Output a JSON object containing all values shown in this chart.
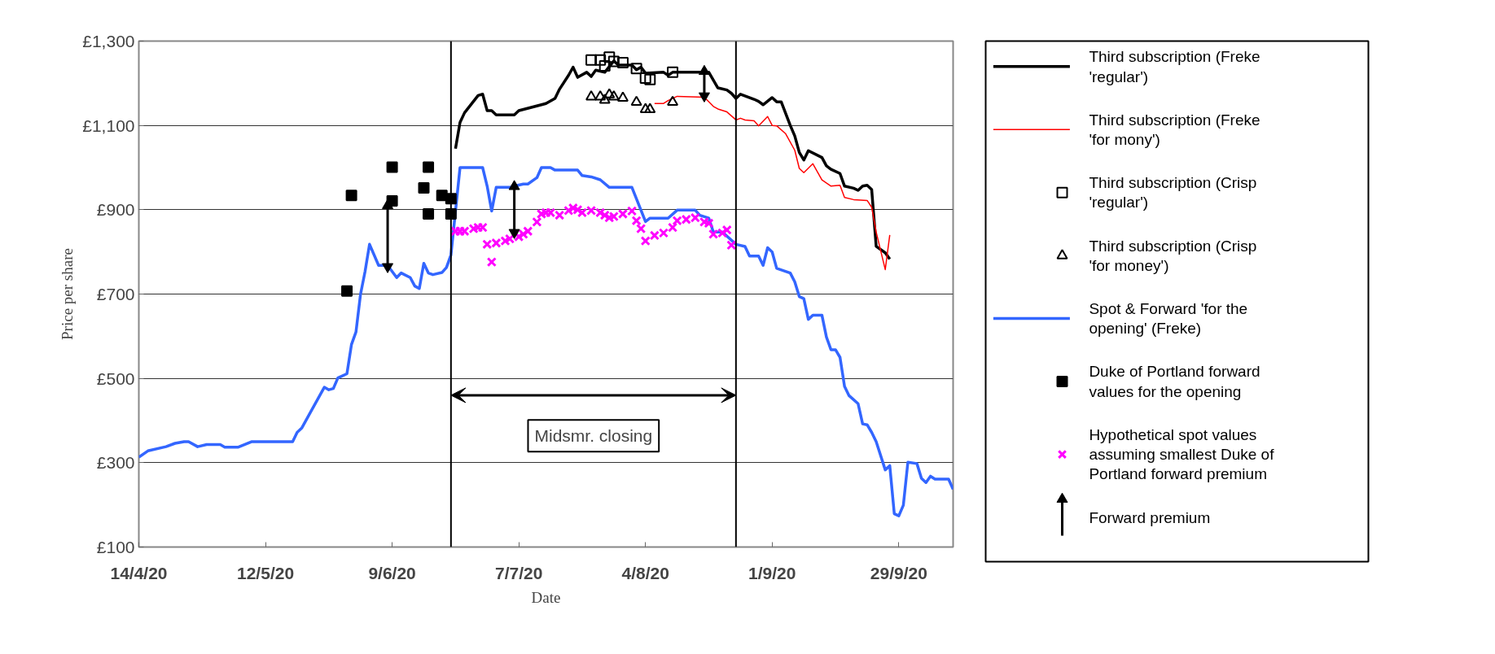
{
  "chart_data": {
    "type": "line",
    "xlabel": "Date",
    "ylabel": "Price per share",
    "xlim": [
      "1720-04-14",
      "1720-10-11"
    ],
    "ylim": [
      100,
      1300
    ],
    "xticks": [
      {
        "value": "1720-04-14",
        "label": "14/4/20"
      },
      {
        "value": "1720-05-12",
        "label": "12/5/20"
      },
      {
        "value": "1720-06-09",
        "label": "9/6/20"
      },
      {
        "value": "1720-07-07",
        "label": "7/7/20"
      },
      {
        "value": "1720-08-04",
        "label": "4/8/20"
      },
      {
        "value": "1720-09-01",
        "label": "1/9/20"
      },
      {
        "value": "1720-09-29",
        "label": "29/9/20"
      }
    ],
    "yticks": [
      {
        "value": 100,
        "label": "£100"
      },
      {
        "value": 300,
        "label": "£300"
      },
      {
        "value": 500,
        "label": "£500"
      },
      {
        "value": 700,
        "label": "£700"
      },
      {
        "value": 900,
        "label": "£900"
      },
      {
        "value": 1100,
        "label": "£1,100"
      },
      {
        "value": 1300,
        "label": "£1,300"
      }
    ],
    "grid": "y",
    "legend": "right",
    "ref_lines": [
      {
        "axis": "x",
        "value": "1720-06-22",
        "color": "#000000"
      },
      {
        "axis": "x",
        "value": "1720-08-24",
        "color": "#000000"
      }
    ],
    "annotations": [
      "Midsmr. closing"
    ],
    "series": [
      {
        "name": "Third subscription (Freke 'regular')",
        "color": "#000000",
        "x": [
          "1720-06-23",
          "1720-06-24",
          "1720-06-25",
          "1720-06-28",
          "1720-06-29",
          "1720-06-30",
          "1720-07-01",
          "1720-07-02",
          "1720-07-06",
          "1720-07-07",
          "1720-07-12",
          "1720-07-13",
          "1720-07-15",
          "1720-07-16",
          "1720-07-18",
          "1720-07-19",
          "1720-07-20",
          "1720-07-22",
          "1720-07-23",
          "1720-07-24",
          "1720-07-26",
          "1720-07-28",
          "1720-07-29",
          "1720-08-01",
          "1720-08-02",
          "1720-08-03",
          "1720-08-04",
          "1720-08-08",
          "1720-08-09",
          "1720-08-10",
          "1720-08-18",
          "1720-08-20",
          "1720-08-22",
          "1720-08-23",
          "1720-08-24",
          "1720-08-25",
          "1720-08-28",
          "1720-08-29",
          "1720-08-30",
          "1720-09-01",
          "1720-09-02",
          "1720-09-03",
          "1720-09-05",
          "1720-09-06",
          "1720-09-07",
          "1720-09-08",
          "1720-09-09",
          "1720-09-12",
          "1720-09-13",
          "1720-09-14",
          "1720-09-16",
          "1720-09-17",
          "1720-09-19",
          "1720-09-20",
          "1720-09-21",
          "1720-09-22",
          "1720-09-23",
          "1720-09-24",
          "1720-09-26",
          "1720-09-27"
        ],
        "values": [
          1045,
          1107,
          1130,
          1171,
          1174,
          1135,
          1135,
          1125,
          1125,
          1135,
          1149,
          1152,
          1164,
          1186,
          1219,
          1238,
          1214,
          1226,
          1216,
          1231,
          1226,
          1253,
          1243,
          1243,
          1232,
          1238,
          1224,
          1226,
          1219,
          1226,
          1226,
          1189,
          1184,
          1176,
          1164,
          1174,
          1162,
          1157,
          1149,
          1166,
          1156,
          1156,
          1100,
          1075,
          1036,
          1018,
          1040,
          1024,
          1004,
          996,
          986,
          956,
          951,
          946,
          956,
          958,
          948,
          813,
          798,
          783
        ]
      },
      {
        "name": "Third subscription (Freke 'for mony')",
        "color": "#ff0000",
        "x": [
          "1720-08-06",
          "1720-08-08",
          "1720-08-09",
          "1720-08-11",
          "1720-08-17",
          "1720-08-19",
          "1720-08-20",
          "1720-08-22",
          "1720-08-24",
          "1720-08-25",
          "1720-08-26",
          "1720-08-28",
          "1720-08-29",
          "1720-08-31",
          "1720-09-01",
          "1720-09-02",
          "1720-09-04",
          "1720-09-06",
          "1720-09-07",
          "1720-09-08",
          "1720-09-10",
          "1720-09-12",
          "1720-09-14",
          "1720-09-16",
          "1720-09-17",
          "1720-09-19",
          "1720-09-22",
          "1720-09-23",
          "1720-09-24",
          "1720-09-26",
          "1720-09-27"
        ],
        "values": [
          1152,
          1152,
          1159,
          1169,
          1167,
          1145,
          1139,
          1132,
          1113,
          1117,
          1113,
          1111,
          1099,
          1121,
          1100,
          1099,
          1080,
          1041,
          998,
          988,
          1009,
          971,
          956,
          958,
          929,
          924,
          922,
          906,
          847,
          758,
          840
        ]
      },
      {
        "name": "Third subscription (Crisp 'regular')",
        "type": "scatter",
        "marker": "square",
        "color": "#000000",
        "x": [
          "1720-07-23",
          "1720-07-25",
          "1720-07-26",
          "1720-07-27",
          "1720-07-28",
          "1720-07-30",
          "1720-08-02",
          "1720-08-04",
          "1720-08-05",
          "1720-08-10"
        ],
        "values": [
          1255,
          1255,
          1241,
          1262,
          1252,
          1249,
          1235,
          1212,
          1209,
          1226
        ]
      },
      {
        "name": "Third subscription (Crisp 'for money')",
        "type": "scatter",
        "marker": "triangle",
        "color": "#000000",
        "x": [
          "1720-07-23",
          "1720-07-25",
          "1720-07-26",
          "1720-07-27",
          "1720-07-28",
          "1720-07-30",
          "1720-08-02",
          "1720-08-04",
          "1720-08-05",
          "1720-08-10"
        ],
        "values": [
          1168,
          1168,
          1160,
          1173,
          1168,
          1165,
          1155,
          1138,
          1138,
          1155
        ]
      },
      {
        "name": "Spot & Forward 'for the opening' (Freke)",
        "color": "#3366ff",
        "x": [
          "1720-04-14",
          "1720-04-16",
          "1720-04-20",
          "1720-04-22",
          "1720-04-24",
          "1720-04-25",
          "1720-04-27",
          "1720-04-29",
          "1720-05-02",
          "1720-05-03",
          "1720-05-06",
          "1720-05-09",
          "1720-05-18",
          "1720-05-19",
          "1720-05-20",
          "1720-05-25",
          "1720-05-26",
          "1720-05-27",
          "1720-05-28",
          "1720-05-30",
          "1720-05-31",
          "1720-06-01",
          "1720-06-02",
          "1720-06-03",
          "1720-06-04",
          "1720-06-06",
          "1720-06-08",
          "1720-06-10",
          "1720-06-11",
          "1720-06-13",
          "1720-06-14",
          "1720-06-15",
          "1720-06-16",
          "1720-06-17",
          "1720-06-18",
          "1720-06-20",
          "1720-06-21",
          "1720-06-22",
          "1720-06-24",
          "1720-06-29",
          "1720-06-30",
          "1720-07-01",
          "1720-07-02",
          "1720-07-05",
          "1720-07-06",
          "1720-07-08",
          "1720-07-09",
          "1720-07-11",
          "1720-07-12",
          "1720-07-14",
          "1720-07-15",
          "1720-07-20",
          "1720-07-21",
          "1720-07-23",
          "1720-07-25",
          "1720-07-27",
          "1720-08-01",
          "1720-08-04",
          "1720-08-05",
          "1720-08-09",
          "1720-08-11",
          "1720-08-15",
          "1720-08-16",
          "1720-08-18",
          "1720-08-19",
          "1720-08-21",
          "1720-08-24",
          "1720-08-26",
          "1720-08-27",
          "1720-08-29",
          "1720-08-30",
          "1720-08-31",
          "1720-09-01",
          "1720-09-02",
          "1720-09-05",
          "1720-09-06",
          "1720-09-07",
          "1720-09-08",
          "1720-09-09",
          "1720-09-10",
          "1720-09-12",
          "1720-09-13",
          "1720-09-14",
          "1720-09-15",
          "1720-09-16",
          "1720-09-17",
          "1720-09-18",
          "1720-09-20",
          "1720-09-21",
          "1720-09-22",
          "1720-09-23",
          "1720-09-24",
          "1720-09-26",
          "1720-09-27",
          "1720-09-28",
          "1720-09-29",
          "1720-09-30",
          "1720-10-01",
          "1720-10-03",
          "1720-10-04",
          "1720-10-05",
          "1720-10-06",
          "1720-10-07",
          "1720-10-10",
          "1720-10-11"
        ],
        "values": [
          313,
          328,
          338,
          346,
          350,
          350,
          338,
          343,
          343,
          337,
          337,
          350,
          350,
          372,
          382,
          479,
          473,
          476,
          501,
          511,
          580,
          610,
          699,
          753,
          818,
          768,
          768,
          739,
          750,
          739,
          719,
          713,
          773,
          750,
          746,
          751,
          763,
          793,
          1000,
          1000,
          956,
          897,
          953,
          953,
          956,
          961,
          961,
          976,
          1000,
          1000,
          994,
          994,
          981,
          978,
          971,
          953,
          953,
          872,
          880,
          880,
          899,
          899,
          887,
          880,
          847,
          847,
          818,
          813,
          790,
          790,
          768,
          810,
          800,
          761,
          750,
          729,
          694,
          689,
          640,
          650,
          650,
          598,
          568,
          568,
          550,
          481,
          459,
          440,
          392,
          390,
          372,
          350,
          283,
          293,
          179,
          174,
          199,
          301,
          298,
          263,
          253,
          268,
          261,
          261,
          237
        ]
      },
      {
        "name": "Duke of Portland forward values for the opening",
        "type": "scatter",
        "marker": "square",
        "color": "#000000",
        "x": [
          "1720-05-30",
          "1720-05-31",
          "1720-06-09",
          "1720-06-09",
          "1720-06-16",
          "1720-06-17",
          "1720-06-17",
          "1720-06-20",
          "1720-06-22",
          "1720-06-22"
        ],
        "values": [
          707,
          934,
          1001,
          921,
          952,
          1001,
          890,
          934,
          926,
          890
        ]
      },
      {
        "name": "Hypothetical spot values assuming smallest Duke of Portland forward premium",
        "type": "scatter",
        "marker": "cross",
        "color": "#ff00ff",
        "x": [
          "1720-06-23",
          "1720-06-24",
          "1720-06-25",
          "1720-06-27",
          "1720-06-28",
          "1720-06-29",
          "1720-06-30",
          "1720-07-01",
          "1720-07-02",
          "1720-07-04",
          "1720-07-05",
          "1720-07-07",
          "1720-07-08",
          "1720-07-09",
          "1720-07-11",
          "1720-07-12",
          "1720-07-13",
          "1720-07-14",
          "1720-07-16",
          "1720-07-18",
          "1720-07-19",
          "1720-07-20",
          "1720-07-21",
          "1720-07-23",
          "1720-07-25",
          "1720-07-26",
          "1720-07-27",
          "1720-07-28",
          "1720-07-30",
          "1720-08-01",
          "1720-08-02",
          "1720-08-03",
          "1720-08-04",
          "1720-08-06",
          "1720-08-08",
          "1720-08-10",
          "1720-08-11",
          "1720-08-13",
          "1720-08-15",
          "1720-08-17",
          "1720-08-18",
          "1720-08-19",
          "1720-08-21",
          "1720-08-22",
          "1720-08-23"
        ],
        "values": [
          849,
          849,
          849,
          855,
          858,
          858,
          818,
          776,
          821,
          826,
          831,
          836,
          842,
          849,
          871,
          890,
          893,
          893,
          887,
          898,
          904,
          900,
          893,
          898,
          893,
          887,
          881,
          884,
          890,
          897,
          874,
          855,
          826,
          839,
          845,
          858,
          874,
          877,
          881,
          871,
          868,
          842,
          845,
          852,
          816
        ]
      },
      {
        "name": "Forward premium",
        "marker": "triangle",
        "color": "#000000",
        "x": [
          "1720-06-08",
          "1720-06-08"
        ],
        "values": [
          765,
          910
        ]
      },
      {
        "marker": "triangle",
        "color": "#000000",
        "x": [
          "1720-07-06",
          "1720-07-06"
        ],
        "values": [
          846,
          955
        ]
      },
      {
        "marker": "triangle",
        "color": "#000000",
        "x": [
          "1720-08-17",
          "1720-08-17"
        ],
        "values": [
          1170,
          1228
        ]
      }
    ]
  }
}
